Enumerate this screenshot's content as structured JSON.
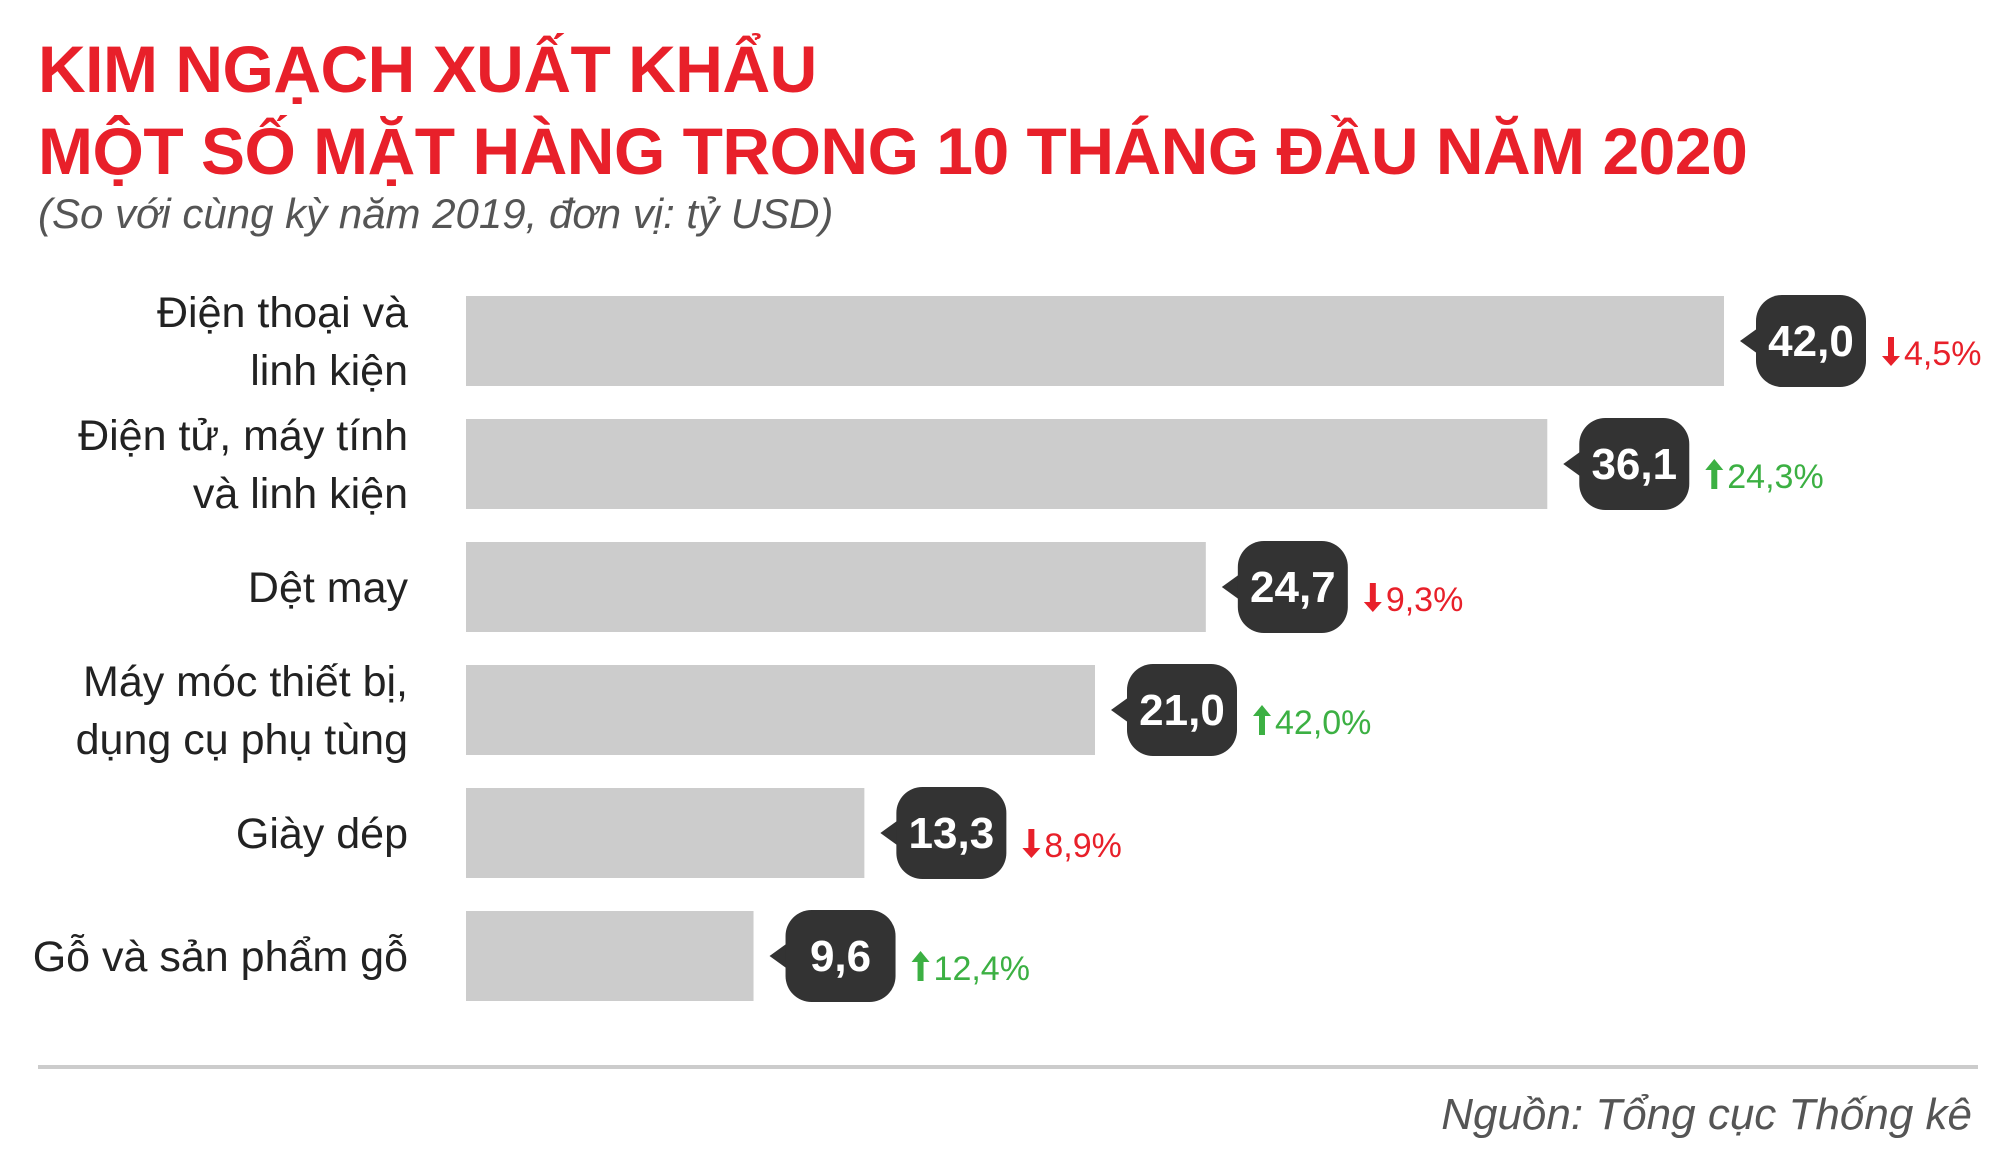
{
  "title_line1": "KIM NGẠCH XUẤT KHẨU",
  "title_line2": "MỘT SỐ MẶT HÀNG TRONG 10 THÁNG ĐẦU NĂM 2020",
  "subtitle": "(So với cùng kỳ năm 2019, đơn vị: tỷ USD)",
  "source": "Nguồn: Tổng cục Thống kê",
  "colors": {
    "title": "#e8202a",
    "bar": "#cccccc",
    "badge": "#333333",
    "down": "#e8202a",
    "up": "#3cb043"
  },
  "chart_data": {
    "type": "bar",
    "orientation": "horizontal",
    "grid": false,
    "xlim": [
      0,
      42
    ],
    "categories": [
      [
        "Điện thoại và",
        "linh kiện"
      ],
      [
        "Điện tử, máy tính",
        "và linh kiện"
      ],
      [
        "Dệt may"
      ],
      [
        "Máy móc thiết bị,",
        "dụng cụ phụ tùng"
      ],
      [
        "Giày dép"
      ],
      [
        "Gỗ và sản phẩm gỗ"
      ]
    ],
    "values": [
      42.0,
      36.1,
      24.7,
      21.0,
      13.3,
      9.6
    ],
    "value_labels": [
      "42,0",
      "36,1",
      "24,7",
      "21,0",
      "13,3",
      "9,6"
    ],
    "changes": [
      {
        "label": "4,5%",
        "direction": "down"
      },
      {
        "label": "24,3%",
        "direction": "up"
      },
      {
        "label": "9,3%",
        "direction": "down"
      },
      {
        "label": "42,0%",
        "direction": "up"
      },
      {
        "label": "8,9%",
        "direction": "down"
      },
      {
        "label": "12,4%",
        "direction": "up"
      }
    ]
  }
}
